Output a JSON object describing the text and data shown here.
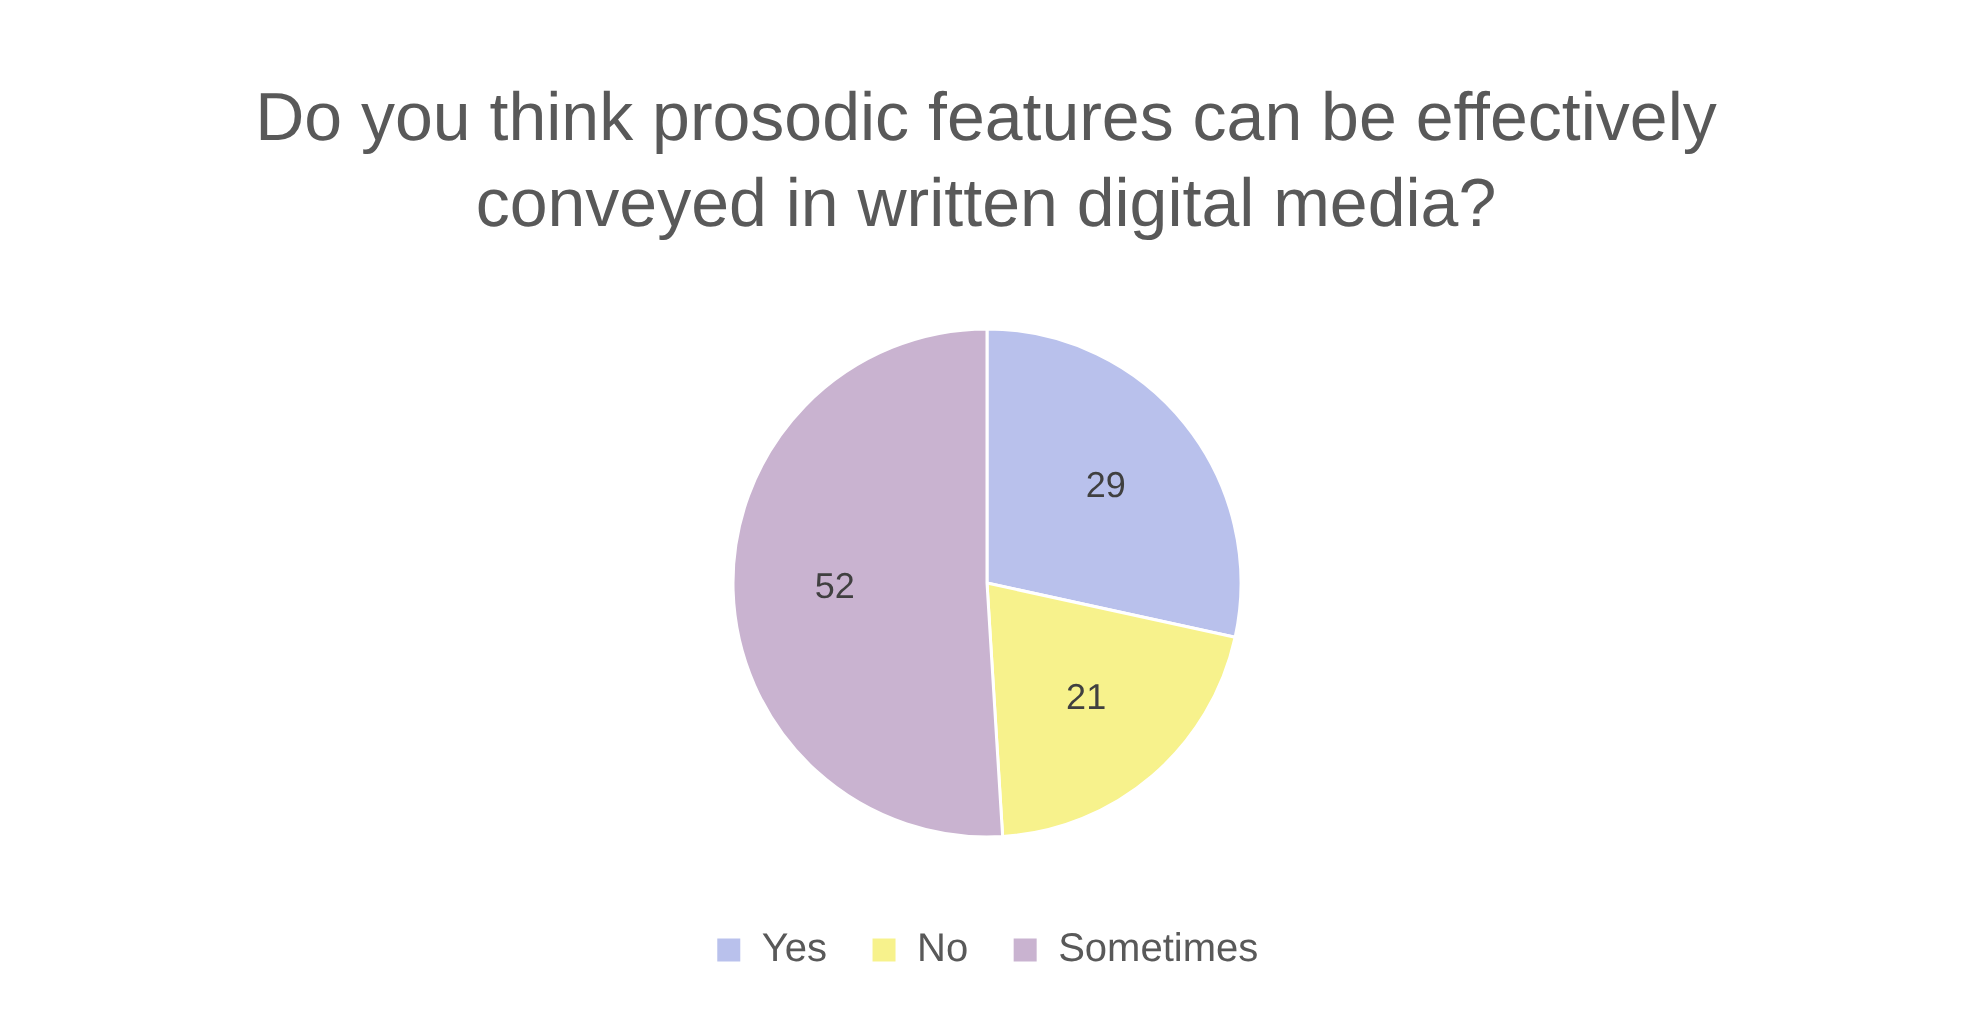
{
  "chart_data": {
    "type": "pie",
    "title": "Do you think prosodic features can be effectively conveyed in written digital media?",
    "categories": [
      "Yes",
      "No",
      "Sometimes"
    ],
    "values": [
      29,
      21,
      52
    ],
    "colors": [
      "#b9c1ec",
      "#f7f28c",
      "#c9b3d0"
    ],
    "data_labels": true,
    "legend": "bottom"
  }
}
